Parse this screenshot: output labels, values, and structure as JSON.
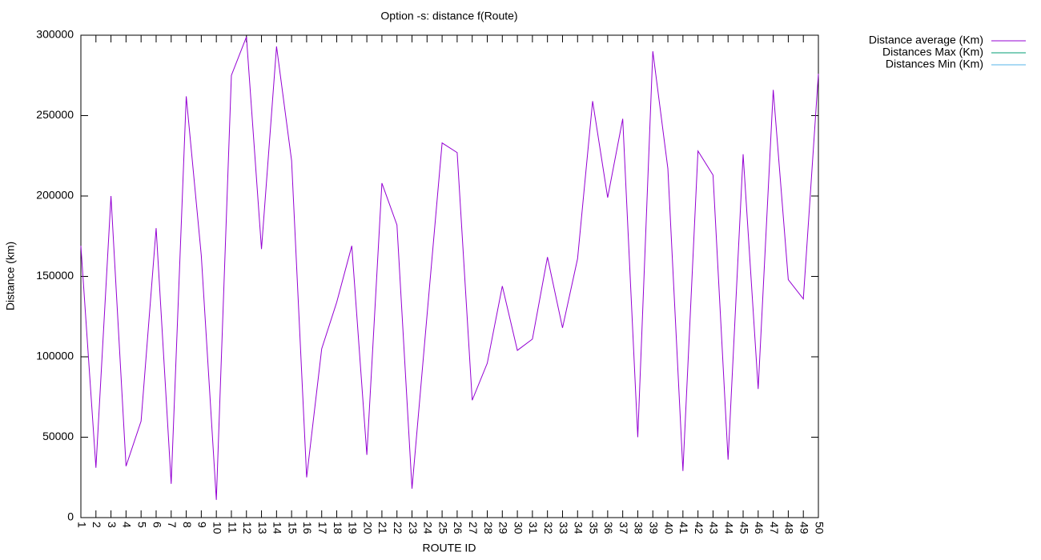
{
  "chart_data": {
    "type": "line",
    "title": "Option -s: distance f(Route)",
    "xlabel": "ROUTE ID",
    "ylabel": "Distance (km)",
    "x": [
      1,
      2,
      3,
      4,
      5,
      6,
      7,
      8,
      9,
      10,
      11,
      12,
      13,
      14,
      15,
      16,
      17,
      18,
      19,
      20,
      21,
      22,
      23,
      24,
      25,
      26,
      27,
      28,
      29,
      30,
      31,
      32,
      33,
      34,
      35,
      36,
      37,
      38,
      39,
      40,
      41,
      42,
      43,
      44,
      45,
      46,
      47,
      48,
      49,
      50
    ],
    "series": [
      {
        "name": "Distance average (Km)",
        "color": "#9400d3",
        "values": [
          169000,
          31000,
          200000,
          32000,
          60000,
          180000,
          21000,
          262000,
          163000,
          11000,
          275000,
          299000,
          167000,
          293000,
          222000,
          25000,
          105000,
          134000,
          169000,
          39000,
          208000,
          182000,
          18000,
          126000,
          233000,
          227000,
          73000,
          96000,
          144000,
          104000,
          111000,
          162000,
          118000,
          161000,
          259000,
          199000,
          248000,
          50000,
          290000,
          217000,
          29000,
          228000,
          213000,
          36000,
          226000,
          80000,
          266000,
          148000,
          136000,
          276000
        ]
      },
      {
        "name": "Distances Max (Km)",
        "color": "#009e73",
        "values": [
          null,
          null,
          null,
          null,
          null,
          null,
          null,
          null,
          null,
          null,
          null,
          null,
          null,
          null,
          null,
          null,
          null,
          null,
          null,
          null,
          null,
          null,
          null,
          null,
          null,
          null,
          null,
          null,
          null,
          null,
          null,
          null,
          null,
          null,
          null,
          null,
          null,
          null,
          null,
          null,
          null,
          null,
          null,
          null,
          null,
          null,
          null,
          null,
          null,
          null
        ]
      },
      {
        "name": "Distances Min (Km)",
        "color": "#56b4e9",
        "values": [
          null,
          null,
          null,
          null,
          null,
          null,
          null,
          null,
          null,
          null,
          null,
          null,
          null,
          null,
          null,
          null,
          null,
          null,
          null,
          null,
          null,
          null,
          null,
          null,
          null,
          null,
          null,
          null,
          null,
          null,
          null,
          null,
          null,
          null,
          null,
          null,
          null,
          null,
          null,
          null,
          null,
          null,
          null,
          null,
          null,
          null,
          null,
          null,
          null,
          null
        ]
      }
    ],
    "xlim": [
      1,
      50
    ],
    "xticks": [
      1,
      2,
      3,
      4,
      5,
      6,
      7,
      8,
      9,
      10,
      11,
      12,
      13,
      14,
      15,
      16,
      17,
      18,
      19,
      20,
      21,
      22,
      23,
      24,
      25,
      26,
      27,
      28,
      29,
      30,
      31,
      32,
      33,
      34,
      35,
      36,
      37,
      38,
      39,
      40,
      41,
      42,
      43,
      44,
      45,
      46,
      47,
      48,
      49,
      50
    ],
    "ylim": [
      0,
      300000
    ],
    "yticks": [
      0,
      50000,
      100000,
      150000,
      200000,
      250000,
      300000
    ],
    "grid": false,
    "legend": "outside-top-right"
  }
}
